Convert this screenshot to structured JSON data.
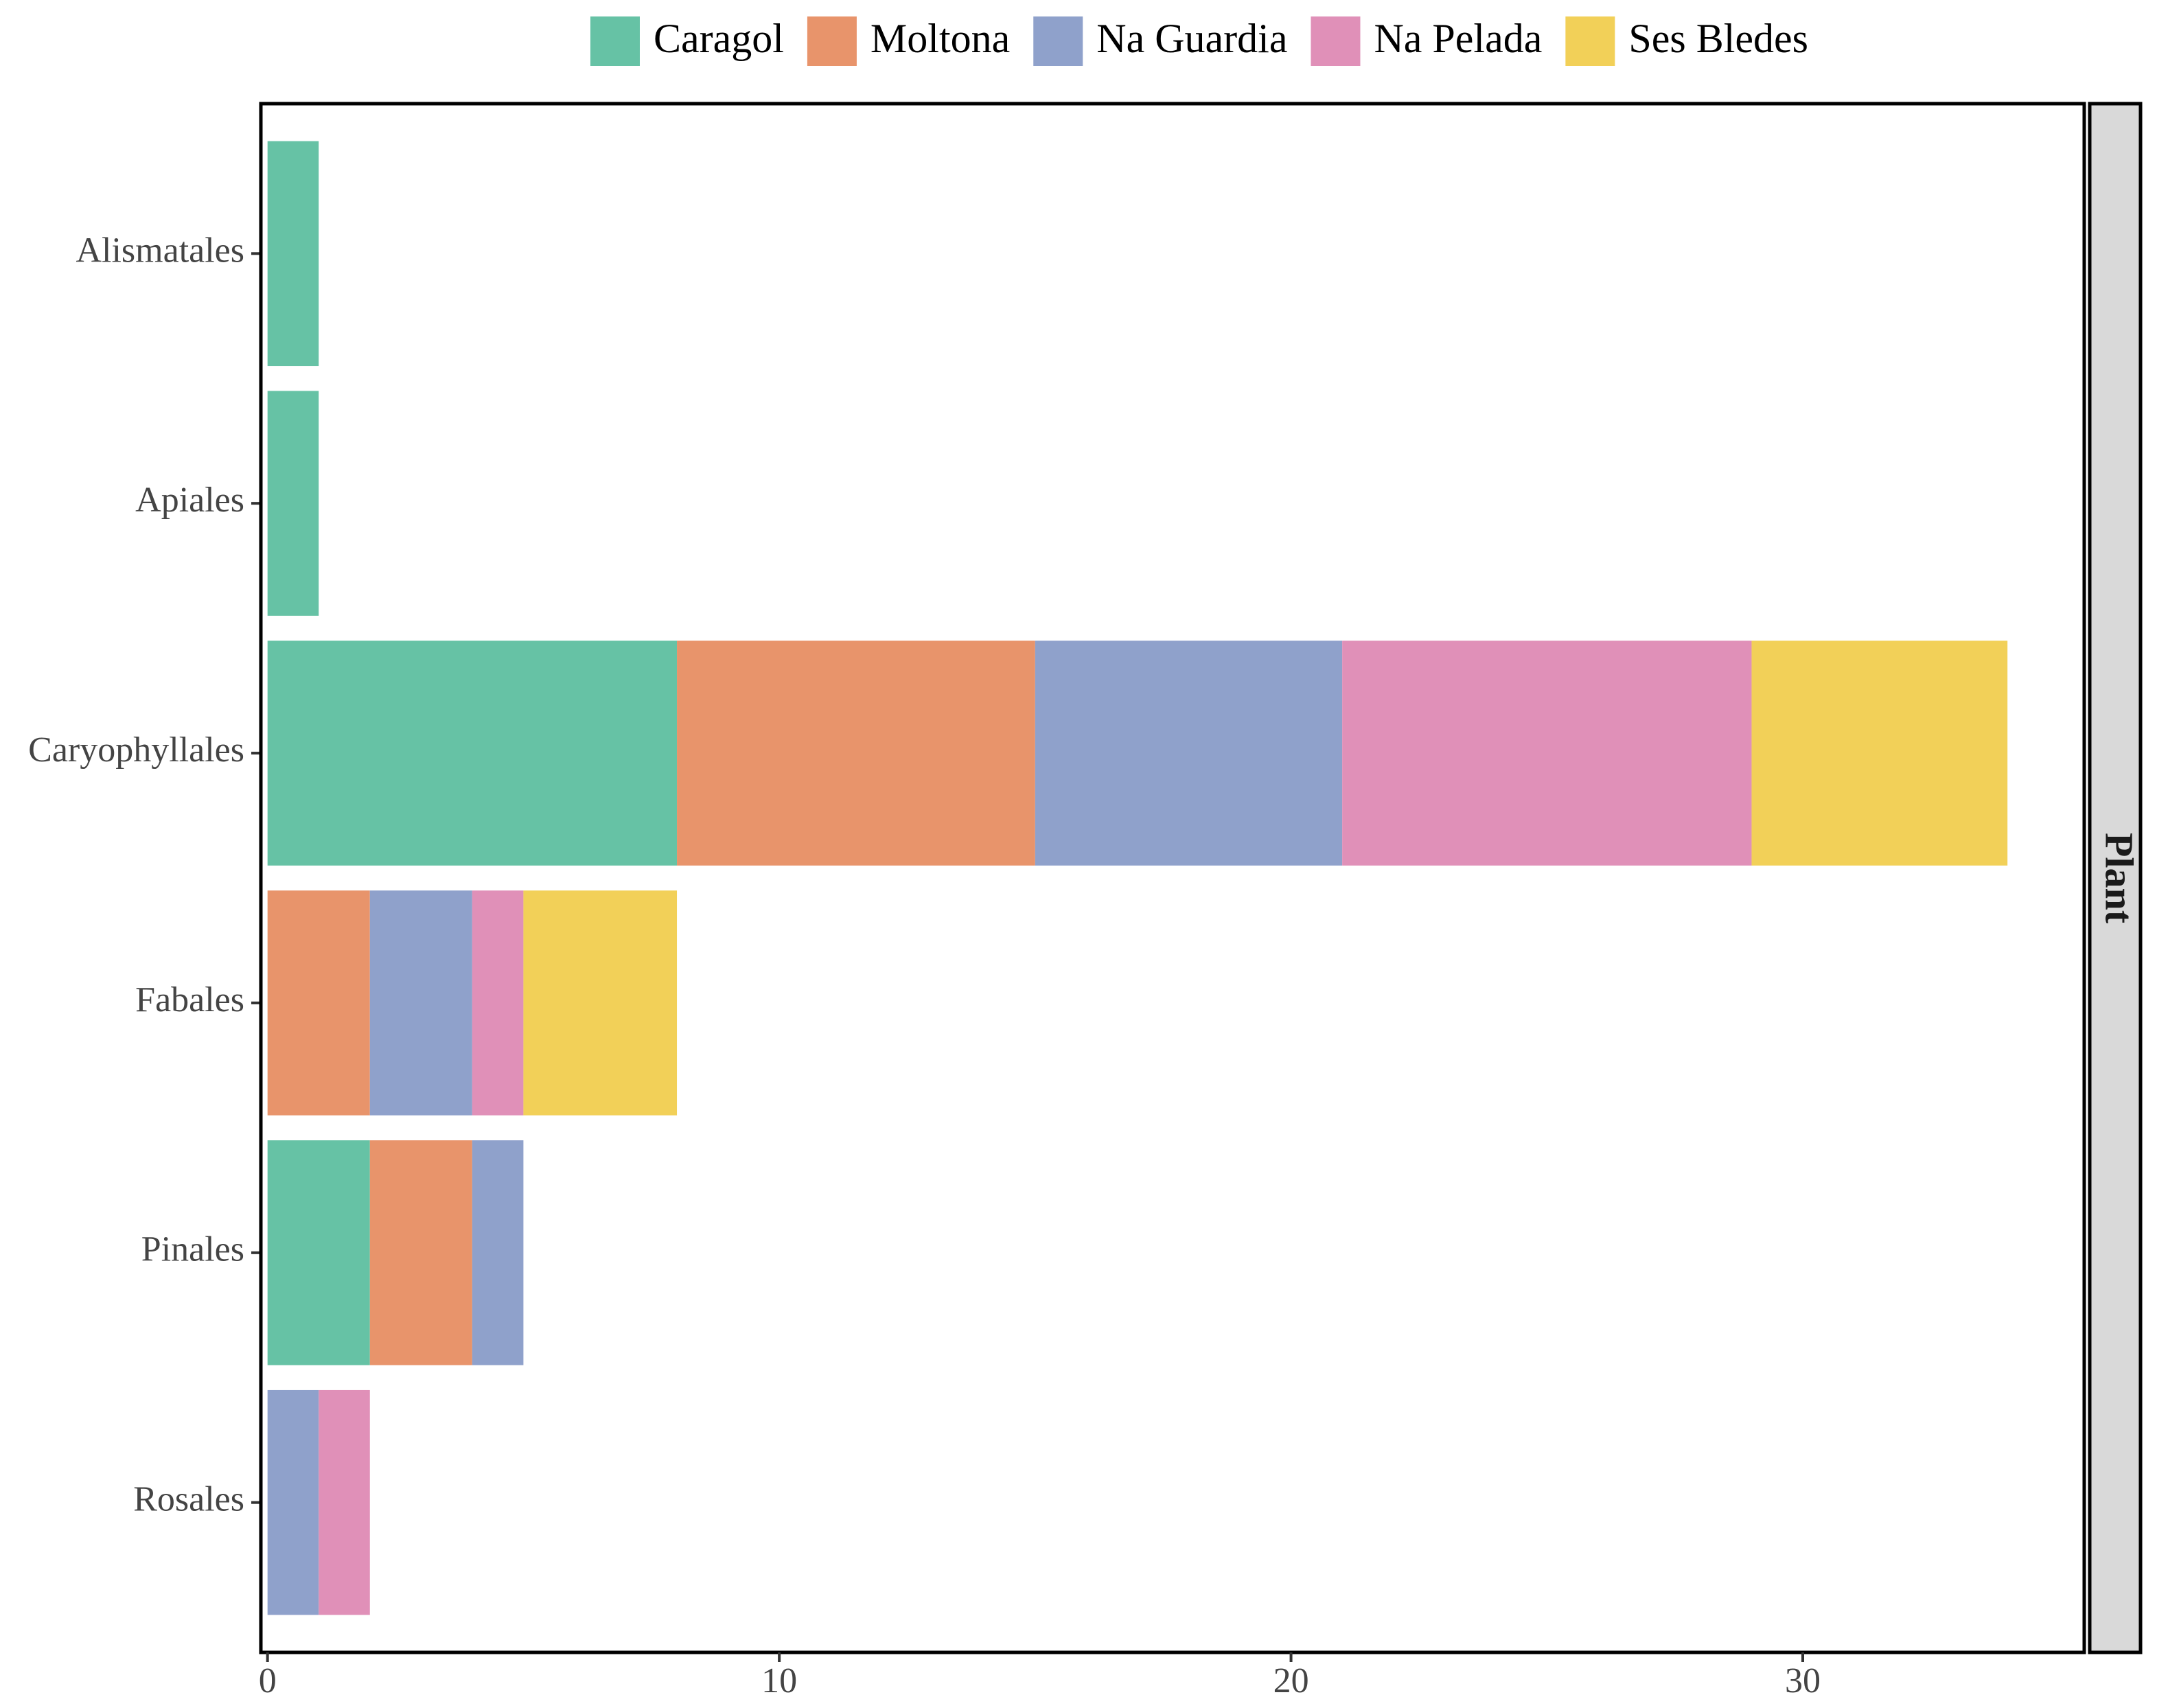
{
  "chart_data": {
    "type": "bar",
    "orientation": "horizontal",
    "stacked": true,
    "categories": [
      "Alismatales",
      "Apiales",
      "Caryophyllales",
      "Fabales",
      "Pinales",
      "Rosales"
    ],
    "series": [
      {
        "name": "Caragol",
        "color": "#66c2a5",
        "values": [
          1,
          1,
          8,
          0,
          2,
          0
        ]
      },
      {
        "name": "Moltona",
        "color": "#e8946b",
        "values": [
          0,
          0,
          7,
          2,
          2,
          0
        ]
      },
      {
        "name": "Na Guardia",
        "color": "#8fa1cb",
        "values": [
          0,
          0,
          6,
          2,
          1,
          1
        ]
      },
      {
        "name": "Na Pelada",
        "color": "#e090b8",
        "values": [
          0,
          0,
          8,
          1,
          0,
          1
        ]
      },
      {
        "name": "Ses Bledes",
        "color": "#f2d058",
        "values": [
          0,
          0,
          5,
          3,
          0,
          0
        ]
      }
    ],
    "xlim": [
      -0.13,
      35.5
    ],
    "xticks": [
      0,
      10,
      20,
      30
    ],
    "facet_label": "Plant",
    "legend": "top"
  }
}
